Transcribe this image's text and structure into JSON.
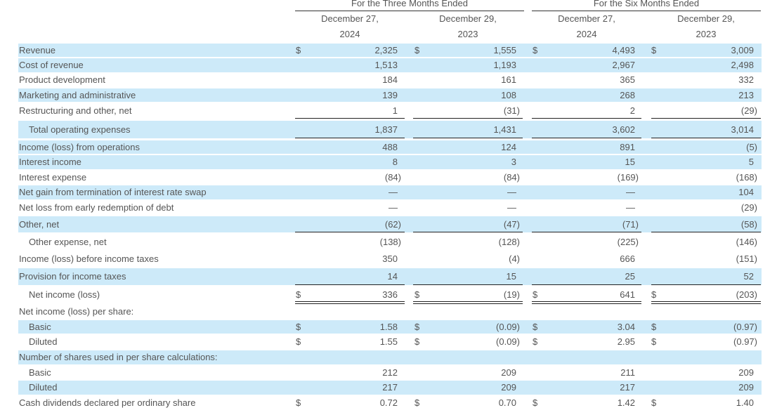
{
  "header": {
    "group1": "For the Three Months Ended",
    "group2": "For the Six Months Ended",
    "columns": [
      {
        "date": "December 27,",
        "year": "2024"
      },
      {
        "date": "December 29,",
        "year": "2023"
      },
      {
        "date": "December 27,",
        "year": "2024"
      },
      {
        "date": "December 29,",
        "year": "2023"
      }
    ]
  },
  "rows": [
    {
      "label": "Revenue",
      "indent": false,
      "shaded": true,
      "dollar": true,
      "values": [
        "2,325",
        "1,555",
        "4,493",
        "3,009"
      ]
    },
    {
      "label": "Cost of revenue",
      "indent": false,
      "shaded": true,
      "dollar": false,
      "values": [
        "1,513",
        "1,193",
        "2,967",
        "2,498"
      ]
    },
    {
      "label": "Product development",
      "indent": false,
      "shaded": false,
      "dollar": false,
      "values": [
        "184",
        "161",
        "365",
        "332"
      ]
    },
    {
      "label": "Marketing and administrative",
      "indent": false,
      "shaded": true,
      "dollar": false,
      "values": [
        "139",
        "108",
        "268",
        "213"
      ]
    },
    {
      "label": "Restructuring and other, net",
      "indent": false,
      "shaded": false,
      "dollar": false,
      "values": [
        "1",
        "(31)",
        "2",
        "(29)"
      ],
      "rule_after": "single"
    },
    {
      "label": "Total operating expenses",
      "indent": true,
      "shaded": true,
      "dollar": false,
      "values": [
        "1,837",
        "1,431",
        "3,602",
        "3,014"
      ],
      "rule_after": "single"
    },
    {
      "label": "Income (loss) from operations",
      "indent": false,
      "shaded": true,
      "dollar": false,
      "values": [
        "488",
        "124",
        "891",
        "(5)"
      ]
    },
    {
      "label": "Interest income",
      "indent": false,
      "shaded": true,
      "dollar": false,
      "values": [
        "8",
        "3",
        "15",
        "5"
      ]
    },
    {
      "label": "Interest expense",
      "indent": false,
      "shaded": false,
      "dollar": false,
      "values": [
        "(84)",
        "(84)",
        "(169)",
        "(168)"
      ]
    },
    {
      "label": "Net gain from termination of interest rate swap",
      "indent": false,
      "shaded": true,
      "dollar": false,
      "values": [
        "—",
        "—",
        "—",
        "104"
      ]
    },
    {
      "label": "Net loss from early redemption of debt",
      "indent": false,
      "shaded": false,
      "dollar": false,
      "values": [
        "—",
        "—",
        "—",
        "(29)"
      ]
    },
    {
      "label": "Other, net",
      "indent": false,
      "shaded": true,
      "dollar": false,
      "values": [
        "(62)",
        "(47)",
        "(71)",
        "(58)"
      ],
      "rule_after": "single"
    },
    {
      "label": "Other expense, net",
      "indent": true,
      "shaded": false,
      "dollar": false,
      "values": [
        "(138)",
        "(128)",
        "(225)",
        "(146)"
      ]
    },
    {
      "label": "Income (loss) before income taxes",
      "indent": false,
      "shaded": false,
      "dollar": false,
      "values": [
        "350",
        "(4)",
        "666",
        "(151)"
      ]
    },
    {
      "label": "Provision for income taxes",
      "indent": false,
      "shaded": true,
      "dollar": false,
      "values": [
        "14",
        "15",
        "25",
        "52"
      ],
      "rule_after": "single"
    },
    {
      "label": "Net income (loss)",
      "indent": true,
      "shaded": false,
      "dollar": true,
      "values": [
        "336",
        "(19)",
        "641",
        "(203)"
      ],
      "rule_after": "double"
    },
    {
      "label": "Net income (loss) per share:",
      "indent": false,
      "shaded": false,
      "dollar": false,
      "values": [
        "",
        "",
        "",
        ""
      ]
    },
    {
      "label": "Basic",
      "indent": true,
      "shaded": true,
      "dollar": true,
      "values": [
        "1.58",
        "(0.09)",
        "3.04",
        "(0.97)"
      ]
    },
    {
      "label": "Diluted",
      "indent": true,
      "shaded": false,
      "dollar": true,
      "values": [
        "1.55",
        "(0.09)",
        "2.95",
        "(0.97)"
      ]
    },
    {
      "label": "Number of shares used in per share calculations:",
      "indent": false,
      "shaded": true,
      "dollar": false,
      "values": [
        "",
        "",
        "",
        ""
      ]
    },
    {
      "label": "Basic",
      "indent": true,
      "shaded": false,
      "dollar": false,
      "values": [
        "212",
        "209",
        "211",
        "209"
      ]
    },
    {
      "label": "Diluted",
      "indent": true,
      "shaded": true,
      "dollar": false,
      "values": [
        "217",
        "209",
        "217",
        "209"
      ]
    },
    {
      "label": "Cash dividends declared per ordinary share",
      "indent": false,
      "shaded": false,
      "dollar": true,
      "values": [
        "0.72",
        "0.70",
        "1.42",
        "1.40"
      ]
    }
  ]
}
